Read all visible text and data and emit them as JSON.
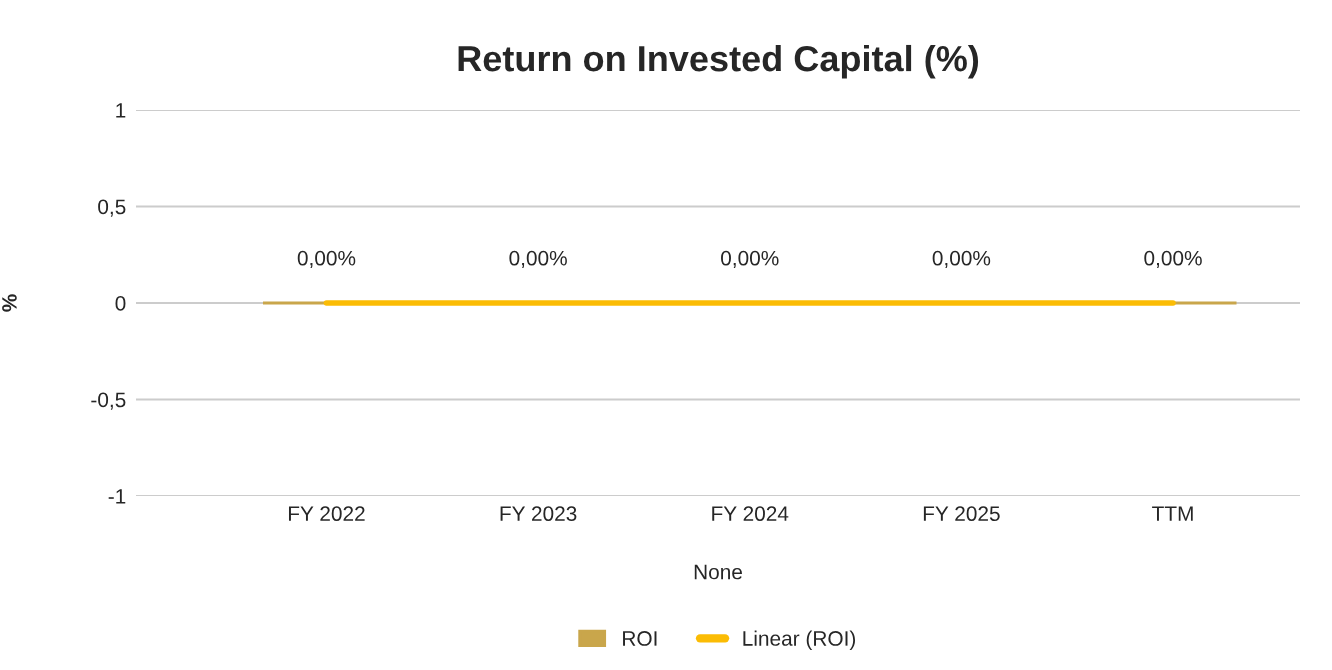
{
  "chart_data": {
    "type": "bar",
    "title": "Return on Invested Capital (%)",
    "xlabel": "None",
    "ylabel": "%",
    "categories": [
      "FY 2022",
      "FY 2023",
      "FY 2024",
      "FY 2025",
      "TTM"
    ],
    "series": [
      {
        "name": "ROI",
        "color": "#c9a64b",
        "values": [
          0,
          0,
          0,
          0,
          0
        ],
        "value_labels": [
          "0,00%",
          "0,00%",
          "0,00%",
          "0,00%",
          "0,00%"
        ]
      },
      {
        "name": "Linear (ROI)",
        "type": "line",
        "color": "#fbbc04",
        "values": [
          0,
          0,
          0,
          0,
          0
        ]
      }
    ],
    "ylim": [
      -1,
      1
    ],
    "yticks": [
      {
        "value": -1,
        "label": "-1"
      },
      {
        "value": -0.5,
        "label": "-0,5"
      },
      0,
      {
        "value": 0.5,
        "label": "0,5"
      },
      1
    ],
    "grid": "y",
    "legend": "bottom"
  }
}
